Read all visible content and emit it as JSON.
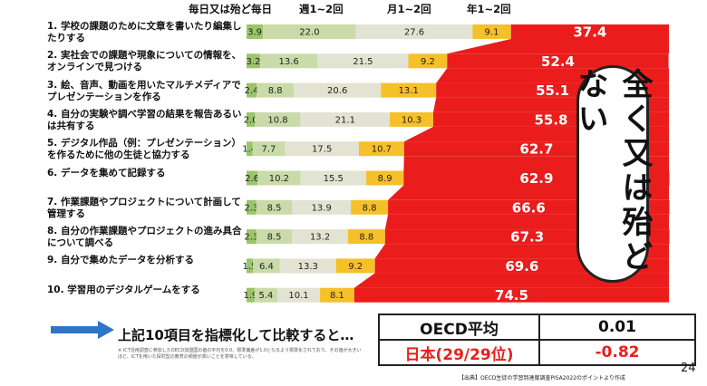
{
  "legend": {
    "labels": [
      "毎日又は殆ど毎日",
      "週1~2回",
      "月1~2回",
      "年1~2回"
    ]
  },
  "chart_data": {
    "type": "bar",
    "orientation": "horizontal",
    "stacked": true,
    "categories": [
      "1. 学校の課題のために文章を書いたり編集したりする",
      "2. 実社会での課題や現象についての情報を、オンラインで見つける",
      "3. 絵、音声、動画を用いたマルチメディアでプレゼンテーションを作る",
      "4. 自分の実験や調べ学習の結果を報告あるいは共有する",
      "5. デジタル作品（例：プレゼンテーション）を作るために他の生徒と協力する",
      "6. データを集めて記録する",
      "7. 作業課題やプロジェクトについて計画して管理する",
      "8. 自分の作業課題やプロジェクトの進み具合について調べる",
      "9. 自分で集めたデータを分析する",
      "10. 学習用のデジタルゲームをする"
    ],
    "series": [
      {
        "name": "毎日又は殆ど毎日",
        "color": "#9ac56a",
        "values": [
          3.9,
          3.2,
          2.4,
          2.0,
          1.4,
          2.6,
          2.3,
          2.3,
          1.5,
          1.9
        ]
      },
      {
        "name": "週1~2回",
        "color": "#c9dba8",
        "values": [
          22.0,
          13.6,
          8.8,
          10.8,
          7.7,
          10.2,
          8.5,
          8.5,
          6.4,
          5.4
        ]
      },
      {
        "name": "月1~2回",
        "color": "#e3e3d3",
        "values": [
          27.6,
          21.5,
          20.6,
          21.1,
          17.5,
          15.5,
          13.9,
          13.2,
          13.3,
          10.1
        ]
      },
      {
        "name": "年1~2回",
        "color": "#f6c02a",
        "values": [
          9.1,
          9.2,
          13.1,
          10.3,
          10.7,
          8.9,
          8.8,
          8.8,
          9.2,
          8.1
        ]
      },
      {
        "name": "全く又は殆どない",
        "color": "#ea1c1c",
        "values": [
          37.4,
          52.4,
          55.1,
          55.8,
          62.7,
          62.9,
          66.6,
          67.3,
          69.6,
          74.5
        ]
      }
    ],
    "xlim": [
      0,
      100
    ]
  },
  "callout": "全く又は殆どない",
  "summary": {
    "text": "上記10項目を指標化して比較すると…",
    "note": "※ ICT活用調査に参加したOECD加盟国の値の平均を0.0、標準偏差が1.0となるよう標準化されており、その値が大きいほど、ICTを用いた探究型の教育の頻度が高いことを意味している。"
  },
  "index_table": {
    "oecd_label": "OECD平均",
    "oecd_value": "0.01",
    "japan_label": "日本(29/29位)",
    "japan_value": "-0.82"
  },
  "source": "【出典】OECD生徒の学習到達度調査PISA2022のポイントより作成",
  "page_number": "24"
}
